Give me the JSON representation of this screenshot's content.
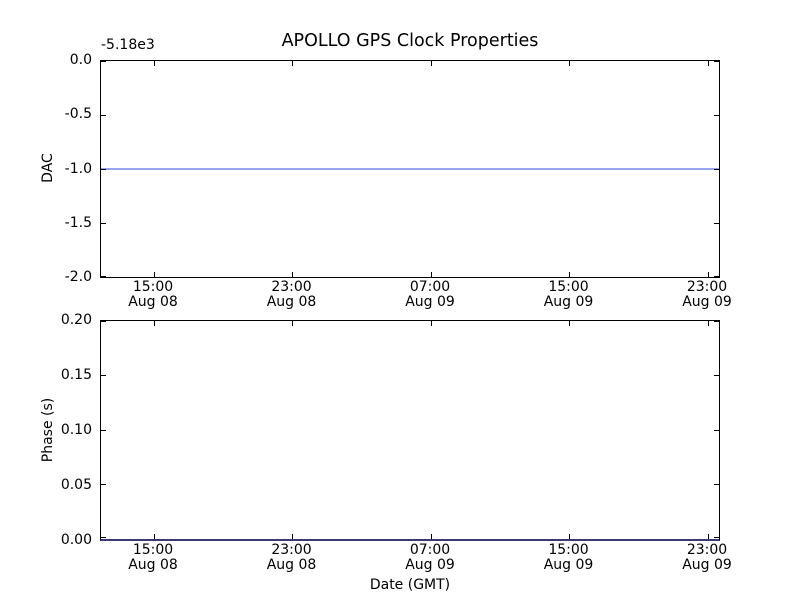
{
  "figure": {
    "title": "APOLLO GPS Clock Properties",
    "xlabel": "Date (GMT)"
  },
  "x_axis": {
    "tick_labels": [
      [
        "15:00",
        "Aug 08"
      ],
      [
        "23:00",
        "Aug 08"
      ],
      [
        "07:00",
        "Aug 09"
      ],
      [
        "15:00",
        "Aug 09"
      ],
      [
        "23:00",
        "Aug 09"
      ]
    ]
  },
  "top_plot": {
    "ylabel": "DAC",
    "offset_text": "-5.18e3",
    "ytick_labels": [
      "0.0",
      "-0.5",
      "-1.0",
      "-1.5",
      "-2.0"
    ],
    "line_color": "#9ba3ee"
  },
  "bottom_plot": {
    "ylabel": "Phase (s)",
    "ytick_labels": [
      "0.20",
      "0.15",
      "0.10",
      "0.05",
      "0.00"
    ],
    "line_color": "#3a3a72"
  },
  "chart_data": [
    {
      "type": "line",
      "subplot": "top",
      "title": "APOLLO GPS Clock Properties",
      "ylabel": "DAC",
      "y_offset_text": "-5.18e3",
      "ylim": [
        -2.0,
        0.0
      ],
      "yticks": [
        0.0,
        -0.5,
        -1.0,
        -1.5,
        -2.0
      ],
      "xtick_labels": [
        "15:00 Aug 08",
        "23:00 Aug 08",
        "07:00 Aug 09",
        "15:00 Aug 09",
        "23:00 Aug 09"
      ],
      "x_range_estimate": [
        "Aug 08 ~12:00",
        "Aug 09 ~23:40"
      ],
      "grid": false,
      "legend": false,
      "series": [
        {
          "name": "DAC",
          "description": "constant horizontal line at DAC = -1.0 (i.e. about -5181 with the -5.18e3 offset), spanning the full x-range",
          "x": [
            "Aug 08 ~12:00",
            "Aug 09 ~23:40"
          ],
          "y": [
            -1.0,
            -1.0
          ],
          "color": "#9ba3ee"
        }
      ]
    },
    {
      "type": "line",
      "subplot": "bottom",
      "xlabel": "Date (GMT)",
      "ylabel": "Phase (s)",
      "ylim": [
        0.0,
        0.2
      ],
      "yticks": [
        0.2,
        0.15,
        0.1,
        0.05,
        0.0
      ],
      "xtick_labels": [
        "15:00 Aug 08",
        "23:00 Aug 08",
        "07:00 Aug 09",
        "15:00 Aug 09",
        "23:00 Aug 09"
      ],
      "x_range_estimate": [
        "Aug 08 ~12:00",
        "Aug 09 ~23:40"
      ],
      "grid": false,
      "legend": false,
      "series": [
        {
          "name": "Phase",
          "description": "constant horizontal line at Phase = 0.00 s, lying on the bottom axis spine",
          "x": [
            "Aug 08 ~12:00",
            "Aug 09 ~23:40"
          ],
          "y": [
            0.0,
            0.0
          ],
          "color": "#3a3a72"
        }
      ]
    }
  ]
}
